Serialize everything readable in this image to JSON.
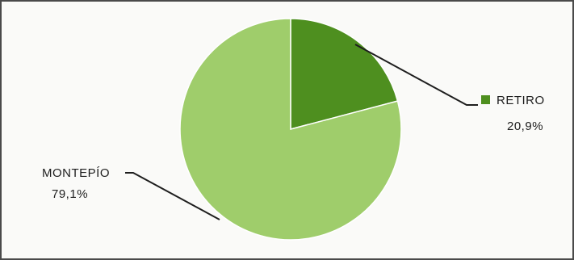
{
  "chart_data": {
    "type": "pie",
    "slices": [
      {
        "label": "RETIRO",
        "value": 20.9,
        "value_label": "20,9%",
        "color": "#4e8f1f"
      },
      {
        "label": "MONTEPÍO",
        "value": 79.1,
        "value_label": "79,1%",
        "color": "#9fcd6b"
      }
    ],
    "start": "12 o'clock",
    "direction": "clockwise",
    "legend": "none",
    "data_labels": "outside with leader lines"
  }
}
